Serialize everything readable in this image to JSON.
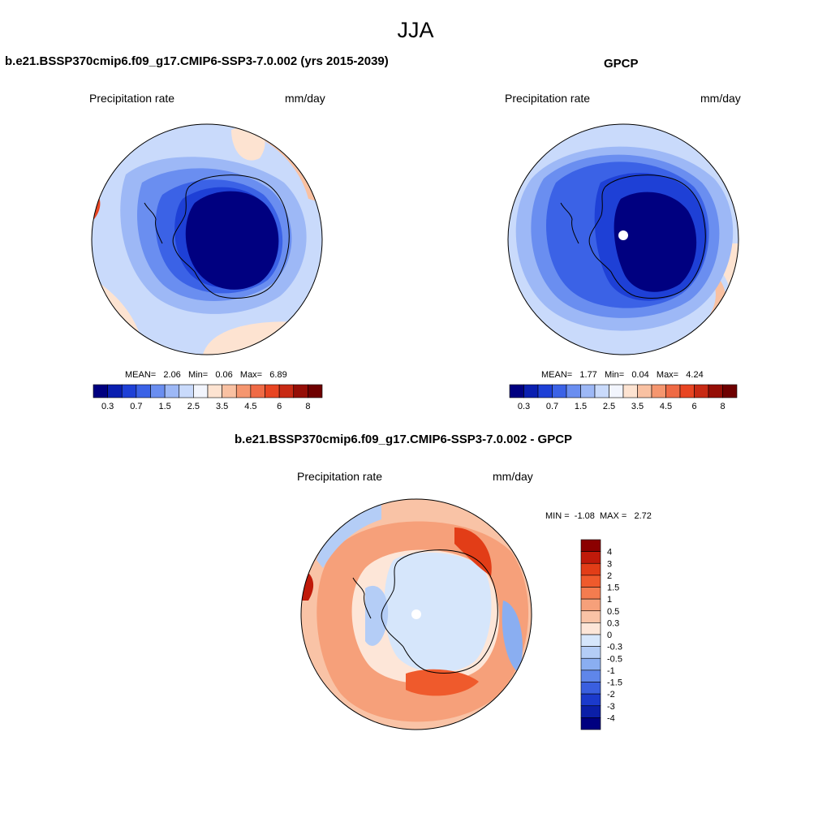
{
  "page": {
    "title": "JJA"
  },
  "chart_data": [
    {
      "type": "heatmap",
      "projection": "south-polar-stereographic",
      "title": "b.e21.BSSP370cmip6.f09_g17.CMIP6-SSP3-7.0.002 (yrs 2015-2039)",
      "variable": "Precipitation rate",
      "units": "mm/day",
      "stats": {
        "mean_label": "MEAN=",
        "mean": "2.06",
        "min_label": "Min=",
        "min": "0.06",
        "max_label": "Max=",
        "max": "6.89"
      },
      "colorbar": {
        "orientation": "horizontal",
        "levels": [
          0.3,
          0.5,
          0.7,
          1,
          1.5,
          2,
          2.5,
          3,
          3.5,
          4,
          4.5,
          5,
          6,
          7,
          8
        ],
        "tick_labels": [
          "0.3",
          "0.7",
          "1.5",
          "2.5",
          "3.5",
          "4.5",
          "6",
          "8"
        ],
        "colors": [
          "#000080",
          "#0a1fb0",
          "#1e40d6",
          "#3b62e6",
          "#6a8ef0",
          "#9db8f6",
          "#c9dafb",
          "#f2f5fd",
          "#fde3d1",
          "#f9c1a2",
          "#f5966f",
          "#ef6a45",
          "#e84522",
          "#c82a14",
          "#950e06",
          "#6e0000"
        ]
      },
      "field_summary": {
        "polar_cap": "0.3",
        "ocean_ring": "2.5",
        "northwest_edge_max": "8"
      }
    },
    {
      "type": "heatmap",
      "projection": "south-polar-stereographic",
      "title": "GPCP",
      "variable": "Precipitation rate",
      "units": "mm/day",
      "stats": {
        "mean_label": "MEAN=",
        "mean": "1.77",
        "min_label": "Min=",
        "min": "0.04",
        "max_label": "Max=",
        "max": "4.24"
      },
      "colorbar": {
        "orientation": "horizontal",
        "levels": [
          0.3,
          0.5,
          0.7,
          1,
          1.5,
          2,
          2.5,
          3,
          3.5,
          4,
          4.5,
          5,
          6,
          7,
          8
        ],
        "tick_labels": [
          "0.3",
          "0.7",
          "1.5",
          "2.5",
          "3.5",
          "4.5",
          "6",
          "8"
        ],
        "colors": [
          "#000080",
          "#0a1fb0",
          "#1e40d6",
          "#3b62e6",
          "#6a8ef0",
          "#9db8f6",
          "#c9dafb",
          "#f2f5fd",
          "#fde3d1",
          "#f9c1a2",
          "#f5966f",
          "#ef6a45",
          "#e84522",
          "#c82a14",
          "#950e06",
          "#6e0000"
        ]
      },
      "field_summary": {
        "polar_cap": "0.3",
        "ocean_ring": "2.5",
        "missing_pole": true
      }
    },
    {
      "type": "heatmap",
      "projection": "south-polar-stereographic",
      "title": "b.e21.BSSP370cmip6.f09_g17.CMIP6-SSP3-7.0.002 - GPCP",
      "variable": "Precipitation rate",
      "units": "mm/day",
      "stats": {
        "min_label": "MIN =",
        "min": "-1.08",
        "max_label": "MAX =",
        "max": "2.72"
      },
      "colorbar": {
        "orientation": "vertical",
        "tick_labels": [
          "4",
          "3",
          "2",
          "1.5",
          "1",
          "0.5",
          "0.3",
          "0",
          "-0.3",
          "-0.5",
          "-1",
          "-1.5",
          "-2",
          "-3",
          "-4"
        ],
        "colors": [
          "#8b0000",
          "#c01a0a",
          "#e23d17",
          "#ef5a2c",
          "#f47c4f",
          "#f6a07a",
          "#f9c3a6",
          "#fde6d8",
          "#d6e6fb",
          "#b4cdf6",
          "#8aaef1",
          "#5f86ea",
          "#3a5fdf",
          "#1b3acc",
          "#0b1fa8",
          "#000080"
        ]
      },
      "field_summary": {
        "antarctic_interior": "0",
        "southern_ocean_ring": "1",
        "missing_pole": true
      }
    }
  ]
}
